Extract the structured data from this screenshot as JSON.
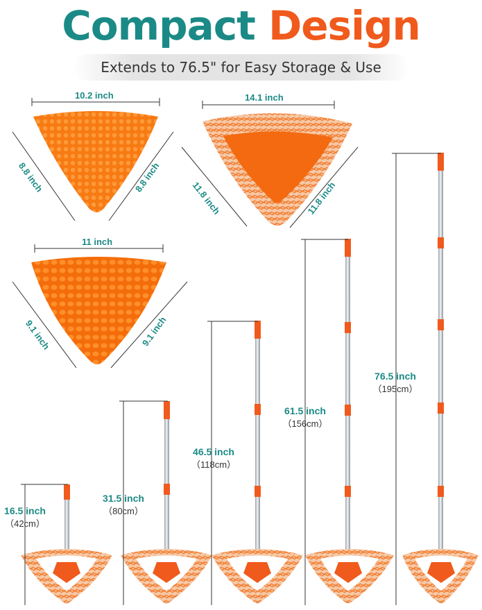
{
  "header": {
    "title_word1": "Compact",
    "title_word2": "Design",
    "subtitle": "Extends to 76.5\" for Easy Storage & Use"
  },
  "pads": [
    {
      "top": "10.2 inch",
      "left": "8.8 inch",
      "right": "8.8 inch"
    },
    {
      "top": "14.1 inch",
      "left": "11.8 inch",
      "right": "11.8 inch"
    },
    {
      "top": "11 inch",
      "left": "9.1 inch",
      "right": "9.1 inch"
    }
  ],
  "mops": [
    {
      "inch": "16.5 inch",
      "cm": "（42cm）"
    },
    {
      "inch": "31.5 inch",
      "cm": "（80cm）"
    },
    {
      "inch": "46.5 inch",
      "cm": "（118cm）"
    },
    {
      "inch": "61.5 inch",
      "cm": "（156cm）"
    },
    {
      "inch": "76.5 inch",
      "cm": "（195cm）"
    }
  ],
  "colors": {
    "teal": "#1b8a86",
    "orange": "#f05a1c",
    "pad_orange": "#f77a12"
  }
}
